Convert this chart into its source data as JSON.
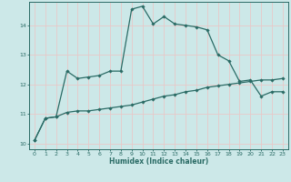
{
  "xlabel": "Humidex (Indice chaleur)",
  "ylabel": "",
  "bg_color": "#cce8e8",
  "grid_color": "#b0d8d8",
  "line_color": "#2a6b65",
  "xlim": [
    -0.5,
    23.5
  ],
  "ylim": [
    9.8,
    14.8
  ],
  "yticks": [
    10,
    11,
    12,
    13,
    14
  ],
  "xticks": [
    0,
    1,
    2,
    3,
    4,
    5,
    6,
    7,
    8,
    9,
    10,
    11,
    12,
    13,
    14,
    15,
    16,
    17,
    18,
    19,
    20,
    21,
    22,
    23
  ],
  "series1_x": [
    0,
    1,
    2,
    3,
    4,
    5,
    6,
    7,
    8,
    9,
    10,
    11,
    12,
    13,
    14,
    15,
    16,
    17,
    18,
    19,
    20,
    21,
    22,
    23
  ],
  "series1_y": [
    10.1,
    10.85,
    10.9,
    12.45,
    12.2,
    12.25,
    12.3,
    12.45,
    12.45,
    14.55,
    14.65,
    14.05,
    14.3,
    14.05,
    14.0,
    13.95,
    13.85,
    13.0,
    12.8,
    12.1,
    12.15,
    11.6,
    11.75,
    11.75
  ],
  "series2_x": [
    0,
    1,
    2,
    3,
    4,
    5,
    6,
    7,
    8,
    9,
    10,
    11,
    12,
    13,
    14,
    15,
    16,
    17,
    18,
    19,
    20,
    21,
    22,
    23
  ],
  "series2_y": [
    10.1,
    10.85,
    10.9,
    11.05,
    11.1,
    11.1,
    11.15,
    11.2,
    11.25,
    11.3,
    11.4,
    11.5,
    11.6,
    11.65,
    11.75,
    11.8,
    11.9,
    11.95,
    12.0,
    12.05,
    12.1,
    12.15,
    12.15,
    12.2
  ]
}
